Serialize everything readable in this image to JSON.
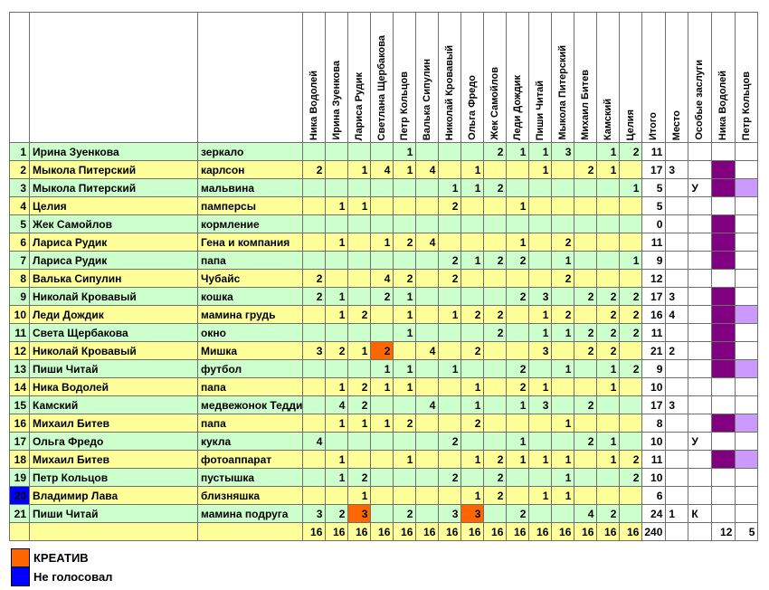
{
  "colors": {
    "row_green": "#ccffcc",
    "row_yellow": "#ffff99",
    "creative": "#ff6600",
    "no_vote": "#0000ff",
    "merit_dark": "#800080",
    "merit_light": "#cc99ff"
  },
  "header": {
    "voters": [
      "Ника Водолей",
      "Ирина Зуенкова",
      "Лариса Рудик",
      "Светлана Щербакова",
      "Петр Кольцов",
      "Валька Сипулин",
      "Николай Кровавый",
      "Ольга Фредо",
      "Жек Самойлов",
      "Леди Дождик",
      "Пиши Читай",
      "Мыкола Питерский",
      "Михаил Битев",
      "Камский",
      "Целия"
    ],
    "results": [
      "Итого",
      "Место",
      "Особые заслуги",
      "Ника Водолей",
      "Петр Кольцов"
    ]
  },
  "rows": [
    {
      "num": "1",
      "author": "Ирина Зуенкова",
      "entry": "зеркало",
      "votes": [
        "",
        "",
        "",
        "",
        "1",
        "",
        "",
        "",
        "2",
        "1",
        "1",
        "3",
        "",
        "1",
        "2"
      ],
      "total": "11",
      "place": "",
      "merit": "",
      "creative": [],
      "nv": false,
      "pk": false,
      "novote": false
    },
    {
      "num": "2",
      "author": "Мыкола Питерский",
      "entry": "карлсон",
      "votes": [
        "2",
        "",
        "1",
        "4",
        "1",
        "4",
        "",
        "1",
        "",
        "",
        "1",
        "",
        "2",
        "1",
        ""
      ],
      "total": "17",
      "place": "3",
      "merit": "",
      "creative": [],
      "nv": true,
      "pk": false,
      "novote": false
    },
    {
      "num": "3",
      "author": "Мыкола Питерский",
      "entry": "мальвина",
      "votes": [
        "",
        "",
        "",
        "",
        "",
        "",
        "1",
        "1",
        "2",
        "",
        "",
        "",
        "",
        "",
        "1"
      ],
      "total": "5",
      "place": "",
      "merit": "У",
      "creative": [],
      "nv": true,
      "pk": true,
      "novote": false
    },
    {
      "num": "4",
      "author": "Целия",
      "entry": "памперсы",
      "votes": [
        "",
        "1",
        "1",
        "",
        "",
        "",
        "2",
        "",
        "",
        "1",
        "",
        "",
        "",
        "",
        ""
      ],
      "total": "5",
      "place": "",
      "merit": "",
      "creative": [],
      "nv": false,
      "pk": false,
      "novote": false
    },
    {
      "num": "5",
      "author": "Жек Самойлов",
      "entry": "кормление",
      "votes": [
        "",
        "",
        "",
        "",
        "",
        "",
        "",
        "",
        "",
        "",
        "",
        "",
        "",
        "",
        ""
      ],
      "total": "0",
      "place": "",
      "merit": "",
      "creative": [],
      "nv": true,
      "pk": false,
      "novote": false
    },
    {
      "num": "6",
      "author": "Лариса Рудик",
      "entry": "Гена и компания",
      "votes": [
        "",
        "1",
        "",
        "1",
        "2",
        "4",
        "",
        "",
        "",
        "1",
        "",
        "2",
        "",
        "",
        ""
      ],
      "total": "11",
      "place": "",
      "merit": "",
      "creative": [],
      "nv": true,
      "pk": false,
      "novote": false
    },
    {
      "num": "7",
      "author": "Лариса Рудик",
      "entry": "папа",
      "votes": [
        "",
        "",
        "",
        "",
        "",
        "",
        "2",
        "1",
        "2",
        "2",
        "",
        "1",
        "",
        "",
        "1"
      ],
      "total": "9",
      "place": "",
      "merit": "",
      "creative": [],
      "nv": true,
      "pk": false,
      "novote": false
    },
    {
      "num": "8",
      "author": "Валька Сипулин",
      "entry": "Чубайс",
      "votes": [
        "2",
        "",
        "",
        "4",
        "2",
        "",
        "2",
        "",
        "",
        "",
        "",
        "2",
        "",
        "",
        ""
      ],
      "total": "12",
      "place": "",
      "merit": "",
      "creative": [],
      "nv": false,
      "pk": false,
      "novote": false
    },
    {
      "num": "9",
      "author": "Николай Кровавый",
      "entry": "кошка",
      "votes": [
        "2",
        "1",
        "",
        "2",
        "1",
        "",
        "",
        "",
        "",
        "2",
        "3",
        "",
        "2",
        "2",
        "2"
      ],
      "total": "17",
      "place": "3",
      "merit": "",
      "creative": [],
      "nv": true,
      "pk": false,
      "novote": false
    },
    {
      "num": "10",
      "author": "Леди Дождик",
      "entry": "мамина грудь",
      "votes": [
        "",
        "1",
        "2",
        "",
        "1",
        "",
        "1",
        "2",
        "2",
        "",
        "1",
        "2",
        "",
        "2",
        "2"
      ],
      "total": "16",
      "place": "4",
      "merit": "",
      "creative": [],
      "nv": true,
      "pk": true,
      "novote": false
    },
    {
      "num": "11",
      "author": "Света Щербакова",
      "entry": "окно",
      "votes": [
        "",
        "",
        "",
        "",
        "1",
        "",
        "",
        "",
        "2",
        "",
        "1",
        "1",
        "2",
        "2",
        "2"
      ],
      "total": "11",
      "place": "",
      "merit": "",
      "creative": [],
      "nv": true,
      "pk": false,
      "novote": false
    },
    {
      "num": "12",
      "author": "Николай Кровавый",
      "entry": "Мишка",
      "votes": [
        "3",
        "2",
        "1",
        "2",
        "",
        "4",
        "",
        "2",
        "",
        "",
        "3",
        "",
        "2",
        "2",
        ""
      ],
      "total": "21",
      "place": "2",
      "merit": "",
      "creative": [
        3
      ],
      "nv": true,
      "pk": false,
      "novote": false
    },
    {
      "num": "13",
      "author": "Пиши Читай",
      "entry": "футбол",
      "votes": [
        "",
        "",
        "",
        "1",
        "1",
        "",
        "1",
        "",
        "",
        "2",
        "",
        "1",
        "",
        "1",
        "2"
      ],
      "total": "9",
      "place": "",
      "merit": "",
      "creative": [],
      "nv": true,
      "pk": true,
      "novote": false
    },
    {
      "num": "14",
      "author": "Ника Водолей",
      "entry": "папа",
      "votes": [
        "",
        "1",
        "2",
        "1",
        "1",
        "",
        "",
        "1",
        "",
        "2",
        "1",
        "",
        "",
        "1",
        ""
      ],
      "total": "10",
      "place": "",
      "merit": "",
      "creative": [],
      "nv": false,
      "pk": false,
      "novote": false
    },
    {
      "num": "15",
      "author": "Камский",
      "entry": "медвежонок Тедди",
      "votes": [
        "",
        "4",
        "2",
        "",
        "",
        "4",
        "",
        "1",
        "",
        "1",
        "3",
        "",
        "2",
        "",
        ""
      ],
      "total": "17",
      "place": "3",
      "merit": "",
      "creative": [],
      "nv": false,
      "pk": false,
      "novote": false
    },
    {
      "num": "16",
      "author": "Михаил Битев",
      "entry": "папа",
      "votes": [
        "",
        "1",
        "1",
        "1",
        "2",
        "",
        "",
        "2",
        "",
        "",
        "",
        "1",
        "",
        "",
        ""
      ],
      "total": "8",
      "place": "",
      "merit": "",
      "creative": [],
      "nv": true,
      "pk": true,
      "novote": false
    },
    {
      "num": "17",
      "author": "Ольга Фредо",
      "entry": "кукла",
      "votes": [
        "4",
        "",
        "",
        "",
        "",
        "",
        "2",
        "",
        "",
        "1",
        "",
        "",
        "2",
        "1",
        ""
      ],
      "total": "10",
      "place": "",
      "merit": "У",
      "creative": [],
      "nv": false,
      "pk": false,
      "novote": false
    },
    {
      "num": "18",
      "author": "Михаил Битев",
      "entry": "фотоаппарат",
      "votes": [
        "",
        "1",
        "",
        "",
        "1",
        "",
        "",
        "1",
        "2",
        "1",
        "1",
        "1",
        "",
        "1",
        "2"
      ],
      "total": "11",
      "place": "",
      "merit": "",
      "creative": [],
      "nv": true,
      "pk": true,
      "novote": false
    },
    {
      "num": "19",
      "author": "Петр Кольцов",
      "entry": "пустышка",
      "votes": [
        "",
        "1",
        "2",
        "",
        "",
        "",
        "2",
        "",
        "2",
        "",
        "",
        "1",
        "",
        "",
        "2"
      ],
      "total": "10",
      "place": "",
      "merit": "",
      "creative": [],
      "nv": false,
      "pk": false,
      "novote": false
    },
    {
      "num": "20",
      "author": "Владимир Лава",
      "entry": "близняшка",
      "votes": [
        "",
        "",
        "1",
        "",
        "",
        "",
        "",
        "1",
        "2",
        "",
        "1",
        "1",
        "",
        "",
        ""
      ],
      "total": "6",
      "place": "",
      "merit": "",
      "creative": [],
      "nv": false,
      "pk": false,
      "novote": true
    },
    {
      "num": "21",
      "author": "Пиши Читай",
      "entry": "мамина подруга",
      "votes": [
        "3",
        "2",
        "3",
        "",
        "2",
        "",
        "3",
        "3",
        "",
        "2",
        "",
        "",
        "4",
        "2",
        ""
      ],
      "total": "24",
      "place": "1",
      "merit": "К",
      "creative": [
        2,
        7
      ],
      "nv": false,
      "pk": false,
      "novote": false
    }
  ],
  "totals_row": {
    "votes": [
      "16",
      "16",
      "16",
      "16",
      "16",
      "16",
      "16",
      "16",
      "16",
      "16",
      "16",
      "16",
      "16",
      "16",
      "16"
    ],
    "total": "240",
    "place": "",
    "merit": "",
    "nv": "12",
    "pk": "5"
  },
  "legend": [
    {
      "label": "КРЕАТИВ",
      "color": "#ff6600"
    },
    {
      "label": "Не голосовал",
      "color": "#0000ff"
    }
  ]
}
